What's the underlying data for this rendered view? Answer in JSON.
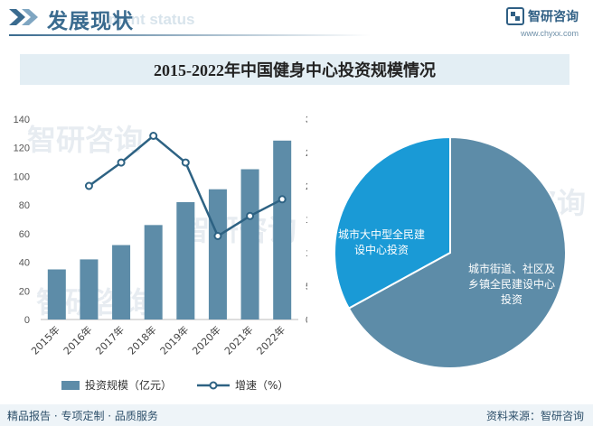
{
  "header": {
    "title": "发展现状",
    "subtitle_en": "ment status",
    "brand_name": "智研咨询",
    "brand_url": "www.chyxx.com"
  },
  "watermark": "智研咨询",
  "chart_data": [
    {
      "type": "bar",
      "title": "2015-2022年中国健身中心投资规模情况",
      "categories": [
        "2015年",
        "2016年",
        "2017年",
        "2018年",
        "2019年",
        "2020年",
        "2021年",
        "2022年"
      ],
      "series": [
        {
          "name": "投资规模（亿元）",
          "type": "bar",
          "axis": "left",
          "color": "#5d8ca8",
          "values": [
            35,
            42,
            52,
            66,
            82,
            91,
            105,
            125
          ]
        },
        {
          "name": "增速（%）",
          "type": "line",
          "axis": "right",
          "color": "#2d6283",
          "values": [
            null,
            20.0,
            23.5,
            27.5,
            23.5,
            12.5,
            15.5,
            18.0
          ]
        }
      ],
      "y_left": {
        "min": 0,
        "max": 140,
        "ticks": [
          "0",
          "20",
          "40",
          "60",
          "80",
          "100",
          "120",
          "140"
        ]
      },
      "y_right": {
        "min": 0,
        "max": 30,
        "ticks": [
          "0%",
          "5%",
          "10%",
          "15%",
          "20%",
          "25%",
          "30%"
        ]
      },
      "legend_position": "bottom",
      "grid": false
    },
    {
      "type": "pie",
      "slices": [
        {
          "label": "城市街道、社区及乡镇全民建设中心投资",
          "value": 67,
          "color": "#5d8ca8"
        },
        {
          "label": "城市大中型全民建设中心投资",
          "value": 33,
          "color": "#1a9ad6"
        }
      ]
    }
  ],
  "legend": {
    "bar_label": "投资规模（亿元）",
    "line_label": "增速（%）"
  },
  "footer": {
    "left": "精品报告 · 专项定制 · 品质服务",
    "right": "资料来源：智研咨询"
  }
}
